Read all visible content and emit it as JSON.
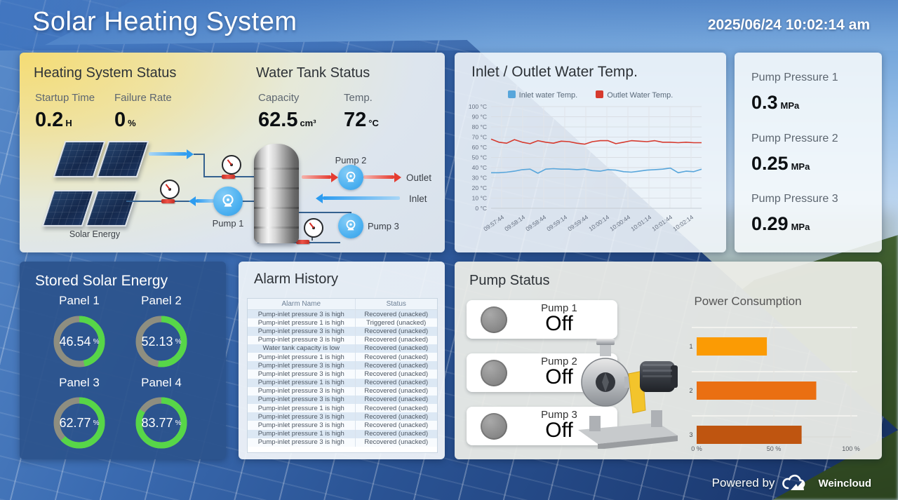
{
  "header": {
    "title": "Solar Heating System",
    "datetime": "2025/06/24 10:02:14 am"
  },
  "heating_status": {
    "title": "Heating System Status",
    "metrics": [
      {
        "label": "Startup Time",
        "value": "0.2",
        "unit": "H"
      },
      {
        "label": "Failure Rate",
        "value": "0",
        "unit": "%"
      }
    ]
  },
  "water_tank": {
    "title": "Water Tank Status",
    "metrics": [
      {
        "label": "Capacity",
        "value": "62.5",
        "unit": "cm³"
      },
      {
        "label": "Temp.",
        "value": "72",
        "unit": "°C"
      }
    ]
  },
  "diagram": {
    "solar_label": "Solar Energy",
    "pump_labels": [
      "Pump 1",
      "Pump 2",
      "Pump 3"
    ],
    "outlet_label": "Outlet",
    "inlet_label": "Inlet"
  },
  "pump_pressures": [
    {
      "label": "Pump Pressure 1",
      "value": "0.3",
      "unit": "MPa"
    },
    {
      "label": "Pump Pressure 2",
      "value": "0.25",
      "unit": "MPa"
    },
    {
      "label": "Pump Pressure 3",
      "value": "0.29",
      "unit": "MPa"
    }
  ],
  "stored_energy": {
    "title": "Stored Solar Energy",
    "ring_color": "#57d648",
    "track_color": "#8e8e80",
    "panels": [
      {
        "label": "Panel 1",
        "value": 46.54,
        "unit": "%"
      },
      {
        "label": "Panel 2",
        "value": 52.13,
        "unit": "%"
      },
      {
        "label": "Panel 3",
        "value": 62.77,
        "unit": "%"
      },
      {
        "label": "Panel 4",
        "value": 83.77,
        "unit": "%"
      }
    ]
  },
  "alarm_history": {
    "title": "Alarm History",
    "columns": [
      "Alarm Name",
      "Status"
    ],
    "rows": [
      [
        "Pump-inlet pressure 3 is high",
        "Recovered (unacked)"
      ],
      [
        "Pump-inlet pressure 1 is high",
        "Triggered (unacked)"
      ],
      [
        "Pump-inlet pressure 3 is high",
        "Recovered (unacked)"
      ],
      [
        "Pump-inlet pressure 3 is high",
        "Recovered (unacked)"
      ],
      [
        "Water tank capacity is low",
        "Recovered (unacked)"
      ],
      [
        "Pump-inlet pressure 1 is high",
        "Recovered (unacked)"
      ],
      [
        "Pump-inlet pressure 3 is high",
        "Recovered (unacked)"
      ],
      [
        "Pump-inlet pressure 3 is high",
        "Recovered (unacked)"
      ],
      [
        "Pump-inlet pressure 1 is high",
        "Recovered (unacked)"
      ],
      [
        "Pump-inlet pressure 3 is high",
        "Recovered (unacked)"
      ],
      [
        "Pump-inlet pressure 3 is high",
        "Recovered (unacked)"
      ],
      [
        "Pump-inlet pressure 1 is high",
        "Recovered (unacked)"
      ],
      [
        "Pump-inlet pressure 3 is high",
        "Recovered (unacked)"
      ],
      [
        "Pump-inlet pressure 3 is high",
        "Recovered (unacked)"
      ],
      [
        "Pump-inlet pressure 1 is high",
        "Recovered (unacked)"
      ],
      [
        "Pump-inlet pressure 3 is high",
        "Recovered (unacked)"
      ]
    ]
  },
  "pump_status": {
    "title": "Pump Status",
    "pumps": [
      {
        "label": "Pump 1",
        "state": "Off"
      },
      {
        "label": "Pump 2",
        "state": "Off"
      },
      {
        "label": "Pump 3",
        "state": "Off"
      }
    ]
  },
  "footer": {
    "powered_by": "Powered by",
    "brand": "Weincloud"
  },
  "chart_data": [
    {
      "type": "line",
      "title": "Inlet / Outlet Water Temp.",
      "ylim": [
        0,
        100
      ],
      "y_ticks": [
        "0 °C",
        "10 °C",
        "20 °C",
        "30 °C",
        "40 °C",
        "50 °C",
        "60 °C",
        "70 °C",
        "80 °C",
        "90 °C",
        "100 °C"
      ],
      "x_labels": [
        "09:57:44",
        "09:58:14",
        "09:58:44",
        "09:59:14",
        "09:59:44",
        "10:00:14",
        "10:00:44",
        "10:01:14",
        "10:01:44",
        "10:02:14"
      ],
      "grid": true,
      "legend_position": "top",
      "series": [
        {
          "name": "Inlet water Temp.",
          "color": "#58a6db",
          "values": [
            35,
            35,
            35.5,
            36.5,
            38,
            38.5,
            34.5,
            38.5,
            39,
            38.5,
            38.5,
            38,
            38.5,
            37,
            36.5,
            38,
            37.5,
            36,
            35.5,
            36.5,
            37.5,
            38,
            38.5,
            39.5,
            35,
            36.5,
            36,
            38.5
          ]
        },
        {
          "name": "Outlet Water Temp.",
          "color": "#d63a2e",
          "values": [
            68,
            65,
            64,
            67.5,
            65,
            63.5,
            66.5,
            65,
            64,
            66,
            65.5,
            64,
            63,
            65.5,
            66.5,
            66.5,
            63.5,
            65,
            66.5,
            66,
            65.5,
            66.5,
            65,
            65,
            64.5,
            65,
            64.5,
            64.5
          ]
        }
      ]
    },
    {
      "type": "bar",
      "orientation": "horizontal",
      "title": "Power Consumption",
      "categories": [
        "1",
        "2",
        "3"
      ],
      "values": [
        45.5,
        77.5,
        68
      ],
      "colors": [
        "#fb9b04",
        "#ea6f12",
        "#bf5510"
      ],
      "xlim": [
        0,
        100
      ],
      "x_ticks": [
        "0 %",
        "50 %",
        "100 %"
      ]
    }
  ]
}
